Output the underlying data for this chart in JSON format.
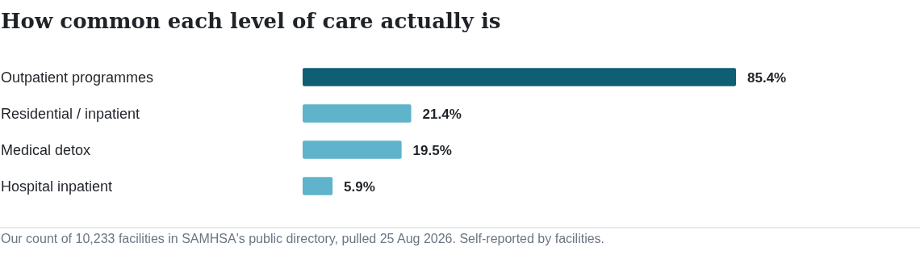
{
  "chart_data": {
    "type": "bar",
    "orientation": "horizontal",
    "title": "How common each level of care actually is",
    "categories": [
      "Outpatient programmes",
      "Residential / inpatient",
      "Medical detox",
      "Hospital inpatient"
    ],
    "values": [
      85.4,
      21.4,
      19.5,
      5.9
    ],
    "colors": [
      "#0e5f73",
      "#5fb4cc",
      "#5fb4cc",
      "#5fb4cc"
    ],
    "value_labels": [
      "85.4%",
      "21.4%",
      "19.5%",
      "5.9%"
    ],
    "annotations": [
      "Our count of 10,233 facilities in SAMHSA's public directory, pulled 25 Aug 2026. Self-reported by facilities."
    ]
  }
}
